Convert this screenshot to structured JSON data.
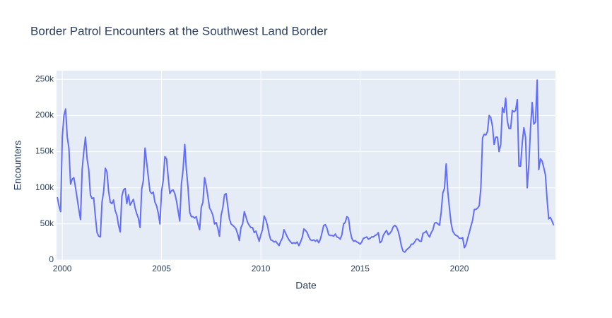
{
  "chart_data": {
    "type": "line",
    "title": "Border Patrol Encounters at the Southwest Land Border",
    "x_label": "Date",
    "y_label": "Encounters",
    "xlim": [
      1999.71,
      2024.84
    ],
    "xticks": [
      2000,
      2005,
      2010,
      2015,
      2020
    ],
    "ylim": [
      0,
      262000
    ],
    "yticks": [
      0,
      {
        "value": 50000,
        "label": "50k"
      },
      {
        "value": 100000,
        "label": "100k"
      },
      {
        "value": 150000,
        "label": "150k"
      },
      {
        "value": 200000,
        "label": "200k"
      },
      {
        "value": 250000,
        "label": "250k"
      }
    ],
    "grid": true,
    "series": [
      {
        "name": "Encounters",
        "color": "#636efa",
        "x": [
          1999.75,
          1999.833,
          1999.917,
          2000,
          2000.083,
          2000.167,
          2000.25,
          2000.333,
          2000.417,
          2000.5,
          2000.583,
          2000.667,
          2000.75,
          2000.833,
          2000.917,
          2001,
          2001.083,
          2001.167,
          2001.25,
          2001.333,
          2001.417,
          2001.5,
          2001.583,
          2001.667,
          2001.75,
          2001.833,
          2001.917,
          2002,
          2002.083,
          2002.167,
          2002.25,
          2002.333,
          2002.417,
          2002.5,
          2002.583,
          2002.667,
          2002.75,
          2002.833,
          2002.917,
          2003,
          2003.083,
          2003.167,
          2003.25,
          2003.333,
          2003.417,
          2003.5,
          2003.583,
          2003.667,
          2003.75,
          2003.833,
          2003.917,
          2004,
          2004.083,
          2004.167,
          2004.25,
          2004.333,
          2004.417,
          2004.5,
          2004.583,
          2004.667,
          2004.75,
          2004.833,
          2004.917,
          2005,
          2005.083,
          2005.167,
          2005.25,
          2005.333,
          2005.417,
          2005.5,
          2005.583,
          2005.667,
          2005.75,
          2005.833,
          2005.917,
          2006,
          2006.083,
          2006.167,
          2006.25,
          2006.333,
          2006.417,
          2006.5,
          2006.583,
          2006.667,
          2006.75,
          2006.833,
          2006.917,
          2007,
          2007.083,
          2007.167,
          2007.25,
          2007.333,
          2007.417,
          2007.5,
          2007.583,
          2007.667,
          2007.75,
          2007.833,
          2007.917,
          2008,
          2008.083,
          2008.167,
          2008.25,
          2008.333,
          2008.417,
          2008.5,
          2008.583,
          2008.667,
          2008.75,
          2008.833,
          2008.917,
          2009,
          2009.083,
          2009.167,
          2009.25,
          2009.333,
          2009.417,
          2009.5,
          2009.583,
          2009.667,
          2009.75,
          2009.833,
          2009.917,
          2010,
          2010.083,
          2010.167,
          2010.25,
          2010.333,
          2010.417,
          2010.5,
          2010.583,
          2010.667,
          2010.75,
          2010.833,
          2010.917,
          2011,
          2011.083,
          2011.167,
          2011.25,
          2011.333,
          2011.417,
          2011.5,
          2011.583,
          2011.667,
          2011.75,
          2011.833,
          2011.917,
          2012,
          2012.083,
          2012.167,
          2012.25,
          2012.333,
          2012.417,
          2012.5,
          2012.583,
          2012.667,
          2012.75,
          2012.833,
          2012.917,
          2013,
          2013.083,
          2013.167,
          2013.25,
          2013.333,
          2013.417,
          2013.5,
          2013.583,
          2013.667,
          2013.75,
          2013.833,
          2013.917,
          2014,
          2014.083,
          2014.167,
          2014.25,
          2014.333,
          2014.417,
          2014.5,
          2014.583,
          2014.667,
          2014.75,
          2014.833,
          2014.917,
          2015,
          2015.083,
          2015.167,
          2015.25,
          2015.333,
          2015.417,
          2015.5,
          2015.583,
          2015.667,
          2015.75,
          2015.833,
          2015.917,
          2016,
          2016.083,
          2016.167,
          2016.25,
          2016.333,
          2016.417,
          2016.5,
          2016.583,
          2016.667,
          2016.75,
          2016.833,
          2016.917,
          2017,
          2017.083,
          2017.167,
          2017.25,
          2017.333,
          2017.417,
          2017.5,
          2017.583,
          2017.667,
          2017.75,
          2017.833,
          2017.917,
          2018,
          2018.083,
          2018.167,
          2018.25,
          2018.333,
          2018.417,
          2018.5,
          2018.583,
          2018.667,
          2018.75,
          2018.833,
          2018.917,
          2019,
          2019.083,
          2019.167,
          2019.25,
          2019.333,
          2019.417,
          2019.5,
          2019.583,
          2019.667,
          2019.75,
          2019.833,
          2019.917,
          2020,
          2020.083,
          2020.167,
          2020.25,
          2020.333,
          2020.417,
          2020.5,
          2020.583,
          2020.667,
          2020.75,
          2020.833,
          2020.917,
          2021,
          2021.083,
          2021.167,
          2021.25,
          2021.333,
          2021.417,
          2021.5,
          2021.583,
          2021.667,
          2021.75,
          2021.833,
          2021.917,
          2022,
          2022.083,
          2022.167,
          2022.25,
          2022.333,
          2022.417,
          2022.5,
          2022.583,
          2022.667,
          2022.75,
          2022.833,
          2022.917,
          2023,
          2023.083,
          2023.167,
          2023.25,
          2023.333,
          2023.417,
          2023.5,
          2023.583,
          2023.667,
          2023.75,
          2023.833,
          2023.917,
          2024,
          2024.083,
          2024.167,
          2024.25,
          2024.333,
          2024.417,
          2024.5,
          2024.583,
          2024.667,
          2024.75
        ],
        "values": [
          87000,
          75000,
          67000,
          170000,
          200000,
          209000,
          170000,
          155000,
          105000,
          112000,
          114000,
          100000,
          85000,
          70000,
          56000,
          125000,
          150000,
          170000,
          140000,
          125000,
          90000,
          85000,
          86000,
          60000,
          38000,
          33000,
          32000,
          80000,
          95000,
          127000,
          122000,
          95000,
          80000,
          78000,
          83000,
          68000,
          62000,
          48000,
          39000,
          88000,
          97000,
          99000,
          78000,
          90000,
          76000,
          80000,
          84000,
          72000,
          64000,
          58000,
          45000,
          98000,
          110000,
          155000,
          135000,
          115000,
          95000,
          92000,
          94000,
          80000,
          75000,
          65000,
          50000,
          95000,
          110000,
          143000,
          140000,
          115000,
          92000,
          96000,
          97000,
          92000,
          82000,
          68000,
          54000,
          105000,
          125000,
          160000,
          125000,
          100000,
          66000,
          60000,
          60000,
          58000,
          60000,
          50000,
          42000,
          73000,
          80000,
          114000,
          103000,
          88000,
          72000,
          68000,
          62000,
          50000,
          52000,
          44000,
          33000,
          62000,
          72000,
          90000,
          92000,
          75000,
          57000,
          50000,
          48000,
          46000,
          43000,
          36000,
          27000,
          45000,
          50000,
          67000,
          60000,
          52000,
          48000,
          45000,
          45000,
          38000,
          40000,
          33000,
          26000,
          35000,
          42000,
          61000,
          56000,
          48000,
          36000,
          28000,
          27000,
          25000,
          26000,
          23000,
          20000,
          26000,
          30000,
          42000,
          37000,
          32000,
          28000,
          25000,
          23000,
          24000,
          23000,
          25000,
          20000,
          25000,
          31000,
          43000,
          41000,
          38000,
          32000,
          28000,
          27000,
          28000,
          26000,
          28000,
          24000,
          29000,
          38000,
          48000,
          49000,
          44000,
          35000,
          34000,
          34000,
          33000,
          36000,
          32000,
          31000,
          29000,
          35000,
          50000,
          52000,
          60000,
          58000,
          40000,
          30000,
          26000,
          27000,
          25000,
          24000,
          22000,
          25000,
          30000,
          31000,
          32000,
          29000,
          30000,
          32000,
          32000,
          34000,
          35000,
          38000,
          24000,
          26000,
          34000,
          38000,
          41000,
          35000,
          37000,
          40000,
          46000,
          48000,
          46000,
          40000,
          31000,
          19000,
          12000,
          11000,
          14000,
          16000,
          18000,
          22000,
          22000,
          25000,
          29000,
          29000,
          26000,
          26000,
          37000,
          38000,
          40000,
          35000,
          32000,
          38000,
          42000,
          51000,
          52000,
          50000,
          48000,
          66000,
          93000,
          99000,
          133000,
          95000,
          72000,
          51000,
          40000,
          36000,
          34000,
          33000,
          30000,
          30000,
          31000,
          17000,
          21000,
          30000,
          38000,
          47000,
          55000,
          70000,
          70000,
          72000,
          75000,
          100000,
          169000,
          174000,
          173000,
          178000,
          200000,
          197000,
          185000,
          160000,
          170000,
          170000,
          150000,
          160000,
          211000,
          204000,
          224000,
          192000,
          182000,
          182000,
          207000,
          205000,
          207000,
          222000,
          130000,
          130000,
          162000,
          183000,
          170000,
          100000,
          132000,
          182000,
          218000,
          188000,
          191000,
          249000,
          125000,
          140000,
          137000,
          128000,
          118000,
          84000,
          57000,
          59000,
          54000,
          48000
        ]
      }
    ]
  }
}
